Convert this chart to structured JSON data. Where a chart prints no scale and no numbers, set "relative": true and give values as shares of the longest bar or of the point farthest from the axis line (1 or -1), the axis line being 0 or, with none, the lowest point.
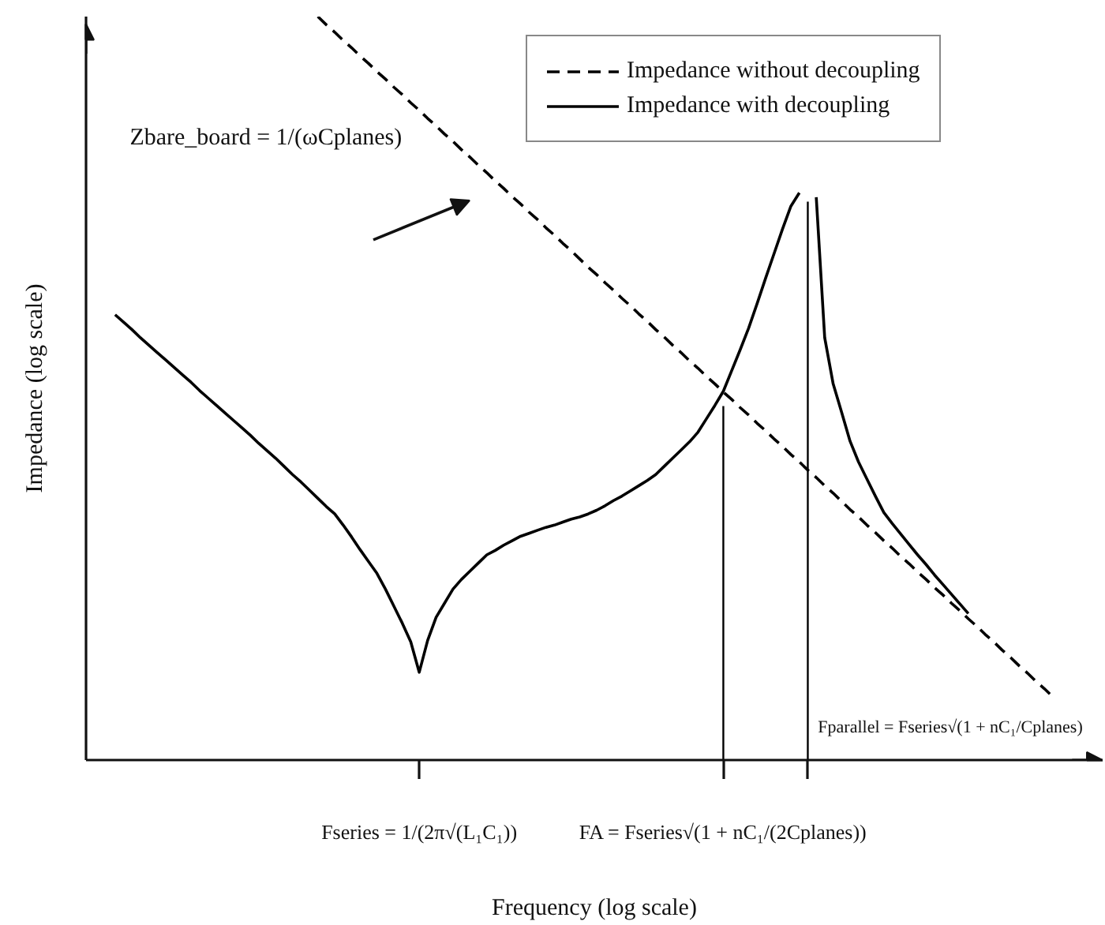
{
  "chart_data": {
    "type": "line",
    "relative": true,
    "xlabel": "Frequency (log scale)",
    "ylabel": "Impedance (log scale)",
    "categories": [
      null,
      null,
      null,
      null,
      null,
      null,
      null,
      null,
      null,
      null,
      null,
      null,
      null,
      null,
      null,
      null,
      null,
      null,
      null,
      null,
      null,
      null,
      null,
      null,
      null,
      null,
      null,
      null,
      null,
      null,
      null,
      null,
      null,
      null,
      null,
      null,
      "Fseries = 1/(2π√(L₁C₁))",
      null,
      null,
      null,
      null,
      null,
      null,
      null,
      null,
      null,
      null,
      null,
      null,
      null,
      null,
      null,
      null,
      null,
      null,
      null,
      null,
      null,
      null,
      null,
      null,
      null,
      null,
      null,
      null,
      null,
      null,
      null,
      null,
      null,
      null,
      null,
      "FA = Fseries√(1 + nC₁/(2Cplanes))",
      null,
      null,
      null,
      null,
      null,
      null,
      null,
      null,
      null,
      null,
      null,
      null,
      null,
      null,
      null,
      null,
      null,
      null,
      null,
      null,
      null,
      null,
      null,
      null,
      null,
      null,
      null,
      null,
      null,
      null,
      null,
      null,
      null,
      null,
      null,
      null,
      null,
      null,
      null
    ],
    "legend": "top right",
    "marker": "none",
    "annotations": [
      "Zbare_board = 1/(ωCplanes)",
      "Fparallel = Fseries√(1 + nC₁/Cplanes)"
    ],
    "series": [
      {
        "name": "Impedance without decoupling",
        "color": "#000000",
        "line_style": "dashed",
        "values": [
          null,
          null,
          null,
          null,
          null,
          null,
          null,
          null,
          null,
          null,
          null,
          null,
          null,
          null,
          null,
          null,
          null,
          null,
          null,
          null,
          null,
          null,
          null,
          null,
          1.0,
          0.989,
          0.979,
          0.968,
          0.958,
          0.947,
          0.937,
          0.926,
          0.916,
          0.905,
          0.895,
          0.884,
          0.874,
          0.863,
          0.853,
          0.842,
          0.832,
          0.821,
          0.811,
          0.8,
          0.79,
          0.779,
          0.769,
          0.758,
          0.748,
          0.737,
          0.727,
          0.716,
          0.706,
          0.695,
          0.685,
          0.674,
          0.663,
          0.653,
          0.642,
          0.632,
          0.621,
          0.611,
          0.6,
          0.59,
          0.579,
          0.569,
          0.558,
          0.548,
          0.537,
          0.527,
          0.516,
          0.506,
          0.495,
          0.485,
          0.474,
          0.464,
          0.453,
          0.443,
          0.432,
          0.422,
          0.411,
          0.401,
          0.39,
          0.38,
          0.369,
          0.359,
          0.348,
          0.337,
          0.327,
          0.316,
          0.306,
          0.295,
          0.285,
          0.274,
          0.264,
          0.253,
          0.243,
          0.232,
          0.222,
          0.211,
          0.201,
          0.19,
          0.18,
          0.169,
          0.159,
          0.148,
          0.138,
          0.127,
          0.117,
          0.106,
          0.096,
          0.085
        ]
      },
      {
        "name": "Impedance with decoupling",
        "color": "#000000",
        "line_style": "solid",
        "values": [
          0.599,
          0.589,
          0.579,
          0.568,
          0.558,
          0.548,
          0.538,
          0.528,
          0.518,
          0.508,
          0.497,
          0.487,
          0.477,
          0.467,
          0.457,
          0.447,
          0.437,
          0.426,
          0.416,
          0.406,
          0.395,
          0.384,
          0.374,
          0.363,
          0.352,
          0.341,
          0.331,
          0.316,
          0.3,
          0.283,
          0.267,
          0.251,
          0.23,
          0.207,
          0.184,
          0.159,
          0.118,
          0.161,
          0.192,
          0.211,
          0.23,
          0.243,
          0.254,
          0.265,
          0.276,
          0.282,
          0.289,
          0.295,
          0.301,
          0.305,
          0.309,
          0.313,
          0.316,
          0.32,
          0.324,
          0.327,
          0.331,
          0.336,
          0.342,
          0.349,
          0.355,
          0.362,
          0.369,
          0.376,
          0.384,
          0.395,
          0.406,
          0.417,
          0.428,
          0.441,
          0.459,
          0.477,
          0.496,
          0.524,
          0.552,
          0.581,
          0.614,
          0.648,
          0.681,
          0.714,
          0.745,
          0.763,
          null,
          0.757,
          0.568,
          0.506,
          0.468,
          0.429,
          0.401,
          0.378,
          0.355,
          0.333,
          0.318,
          0.304,
          0.29,
          0.276,
          0.263,
          0.249,
          0.236,
          0.223,
          0.21,
          0.197,
          null,
          null,
          null,
          null,
          null,
          null,
          null,
          null,
          null,
          null
        ]
      },
      {
        "type": "bar",
        "color": "#000000",
        "values": [
          null,
          null,
          null,
          null,
          null,
          null,
          null,
          null,
          null,
          null,
          null,
          null,
          null,
          null,
          null,
          null,
          null,
          null,
          null,
          null,
          null,
          null,
          null,
          null,
          null,
          null,
          null,
          null,
          null,
          null,
          null,
          null,
          null,
          null,
          null,
          null,
          null,
          null,
          null,
          null,
          null,
          null,
          null,
          null,
          null,
          null,
          null,
          null,
          null,
          null,
          null,
          null,
          null,
          null,
          null,
          null,
          null,
          null,
          null,
          null,
          null,
          null,
          null,
          null,
          null,
          null,
          null,
          null,
          null,
          null,
          null,
          null,
          0.476,
          null,
          null,
          null,
          null,
          null,
          null,
          null,
          null,
          null,
          0.751,
          null,
          null,
          null,
          null,
          null,
          null,
          null,
          null,
          null,
          null,
          null,
          null,
          null,
          null,
          null,
          null,
          null,
          null,
          null,
          null,
          null,
          null,
          null,
          null,
          null,
          null,
          null,
          null,
          null
        ]
      }
    ]
  }
}
